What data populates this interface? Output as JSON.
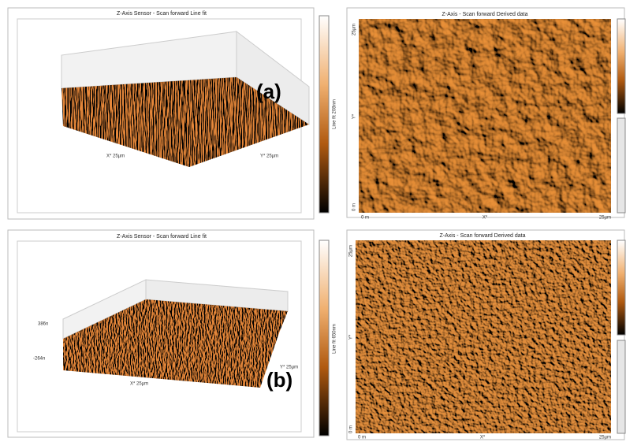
{
  "figure_a": {
    "surface": {
      "title": "Z-Axis Sensor - Scan forward   Line fit",
      "x_label": "X* 25µm",
      "y_label": "Y* 25µm",
      "colorbar_label": "Line fit 208nm",
      "tag": "(a)"
    },
    "image": {
      "title": "Z-Axis - Scan forward   Derived data",
      "y_top": "25µm",
      "y_bottom": "0 m",
      "y_label": "Y*",
      "x_left": "0 m",
      "x_label": "X*",
      "x_right": "25µm"
    }
  },
  "figure_b": {
    "surface": {
      "title": "Z-Axis Sensor - Scan forward   Line fit",
      "z_top": "386n",
      "z_bottom": "-264n",
      "x_label": "X* 25µm",
      "y_label": "Y* 25µm",
      "colorbar_label": "Line fit 650nm",
      "tag": "(b)"
    },
    "image": {
      "title": "Z-Axis - Scan forward   Derived data",
      "y_top": "25µm",
      "y_bottom": "0 m",
      "y_label": "Y*",
      "x_left": "0 m",
      "x_label": "X*",
      "x_right": "25µm"
    }
  }
}
